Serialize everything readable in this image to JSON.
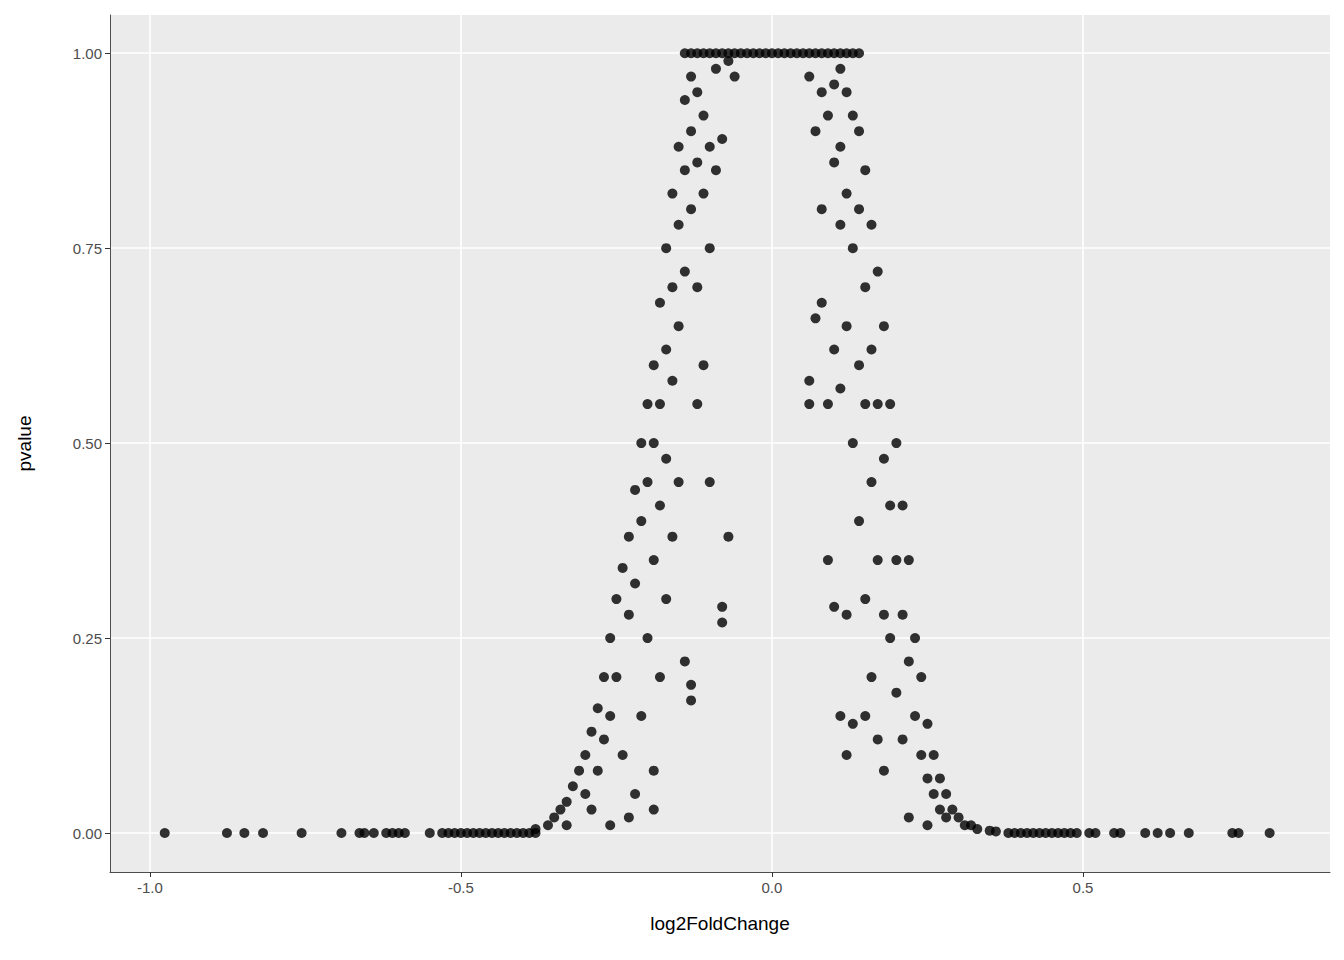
{
  "chart_data": {
    "type": "scatter",
    "x_label": "log2FoldChange",
    "y_label": "pvalue",
    "color": "#000000",
    "marker": "circle",
    "grid": true,
    "xlim": [
      -1.064,
      0.897
    ],
    "xticks": [
      {
        "value": -1,
        "label": "-1.0"
      },
      {
        "value": -0.5,
        "label": "-0.5"
      },
      {
        "value": 0,
        "label": "0.0"
      },
      {
        "value": 0.5,
        "label": "0.5"
      }
    ],
    "ylim": [
      -0.05,
      1.049
    ],
    "yticks": [
      {
        "value": 0,
        "label": "0.00"
      },
      {
        "value": 0.25,
        "label": "0.25"
      },
      {
        "value": 0.5,
        "label": "0.50"
      },
      {
        "value": 0.75,
        "label": "0.75"
      },
      {
        "value": 1,
        "label": "1.00"
      }
    ],
    "x": [
      -0.976,
      -0.876,
      -0.848,
      -0.818,
      -0.756,
      -0.692,
      -0.663,
      -0.655,
      -0.64,
      -0.62,
      -0.61,
      -0.6,
      -0.59,
      -0.55,
      -0.53,
      -0.52,
      -0.51,
      -0.5,
      -0.49,
      -0.48,
      -0.47,
      -0.46,
      -0.45,
      -0.44,
      -0.43,
      -0.42,
      -0.41,
      -0.4,
      -0.39,
      -0.38,
      0.38,
      0.39,
      0.4,
      0.41,
      0.42,
      0.43,
      0.44,
      0.45,
      0.46,
      0.47,
      0.48,
      0.49,
      0.51,
      0.52,
      0.55,
      0.56,
      0.6,
      0.62,
      0.64,
      0.67,
      0.74,
      0.75,
      0.8,
      -0.14,
      -0.13,
      -0.12,
      -0.11,
      -0.1,
      -0.09,
      -0.08,
      -0.07,
      -0.06,
      -0.05,
      -0.04,
      -0.03,
      -0.02,
      -0.01,
      0,
      0.01,
      0.02,
      0.03,
      0.04,
      0.05,
      0.06,
      0.07,
      0.08,
      0.09,
      0.1,
      0.11,
      0.12,
      0.13,
      0.14,
      -0.38,
      -0.36,
      -0.35,
      -0.34,
      -0.33,
      -0.32,
      -0.31,
      -0.3,
      -0.3,
      -0.29,
      -0.29,
      -0.28,
      -0.28,
      -0.27,
      -0.27,
      -0.26,
      -0.26,
      -0.25,
      -0.25,
      -0.24,
      -0.24,
      -0.23,
      -0.23,
      -0.22,
      -0.22,
      -0.22,
      -0.21,
      -0.21,
      -0.21,
      -0.2,
      -0.2,
      -0.2,
      -0.19,
      -0.19,
      -0.19,
      -0.19,
      -0.18,
      -0.18,
      -0.18,
      -0.18,
      -0.17,
      -0.17,
      -0.17,
      -0.17,
      -0.16,
      -0.16,
      -0.16,
      -0.16,
      -0.15,
      -0.15,
      -0.15,
      -0.15,
      -0.14,
      -0.14,
      -0.14,
      -0.14,
      -0.13,
      -0.13,
      -0.13,
      -0.13,
      -0.12,
      -0.12,
      -0.12,
      -0.12,
      -0.11,
      -0.11,
      -0.11,
      -0.1,
      -0.1,
      -0.1,
      -0.09,
      -0.09,
      -0.08,
      -0.08,
      -0.07,
      -0.07,
      -0.06,
      -0.08,
      -0.13,
      -0.19,
      -0.23,
      -0.26,
      -0.33,
      0.06,
      0.06,
      0.06,
      0.07,
      0.07,
      0.08,
      0.08,
      0.08,
      0.09,
      0.09,
      0.09,
      0.1,
      0.1,
      0.1,
      0.1,
      0.11,
      0.11,
      0.11,
      0.11,
      0.11,
      0.12,
      0.12,
      0.12,
      0.12,
      0.12,
      0.13,
      0.13,
      0.13,
      0.13,
      0.14,
      0.14,
      0.14,
      0.14,
      0.15,
      0.15,
      0.15,
      0.15,
      0.15,
      0.16,
      0.16,
      0.16,
      0.16,
      0.17,
      0.17,
      0.17,
      0.17,
      0.18,
      0.18,
      0.18,
      0.18,
      0.19,
      0.19,
      0.19,
      0.2,
      0.2,
      0.2,
      0.21,
      0.21,
      0.21,
      0.22,
      0.22,
      0.22,
      0.23,
      0.23,
      0.24,
      0.24,
      0.25,
      0.25,
      0.25,
      0.26,
      0.26,
      0.27,
      0.27,
      0.28,
      0.28,
      0.29,
      0.3,
      0.31,
      0.32,
      0.33,
      0.35,
      0.36
    ],
    "values": [
      0,
      0,
      0,
      0,
      0,
      0,
      0,
      0,
      0,
      0,
      0,
      0,
      0,
      0,
      0,
      0,
      0,
      0,
      0,
      0,
      0,
      0,
      0,
      0,
      0,
      0,
      0,
      0,
      0,
      0,
      0,
      0,
      0,
      0,
      0,
      0,
      0,
      0,
      0,
      0,
      0,
      0,
      0,
      0,
      0,
      0,
      0,
      0,
      0,
      0,
      0,
      0,
      0,
      1,
      1,
      1,
      1,
      1,
      1,
      1,
      1,
      1,
      1,
      1,
      1,
      1,
      1,
      1,
      1,
      1,
      1,
      1,
      1,
      1,
      1,
      1,
      1,
      1,
      1,
      1,
      1,
      1,
      0.005,
      0.01,
      0.02,
      0.03,
      0.04,
      0.06,
      0.08,
      0.1,
      0.05,
      0.13,
      0.03,
      0.16,
      0.08,
      0.2,
      0.12,
      0.25,
      0.15,
      0.3,
      0.2,
      0.34,
      0.1,
      0.38,
      0.28,
      0.44,
      0.32,
      0.05,
      0.5,
      0.4,
      0.15,
      0.55,
      0.45,
      0.25,
      0.6,
      0.5,
      0.35,
      0.08,
      0.68,
      0.55,
      0.42,
      0.2,
      0.75,
      0.62,
      0.48,
      0.3,
      0.82,
      0.7,
      0.58,
      0.38,
      0.88,
      0.78,
      0.65,
      0.45,
      0.94,
      0.85,
      0.72,
      0.22,
      0.97,
      0.9,
      0.8,
      0.17,
      0.95,
      0.86,
      0.7,
      0.55,
      0.92,
      0.82,
      0.6,
      0.88,
      0.75,
      0.45,
      0.98,
      0.85,
      0.89,
      0.29,
      0.38,
      0.99,
      0.97,
      0.27,
      0.19,
      0.03,
      0.02,
      0.01,
      0.01,
      0.97,
      0.58,
      0.55,
      0.9,
      0.66,
      0.95,
      0.8,
      0.68,
      0.92,
      0.35,
      0.55,
      0.96,
      0.86,
      0.62,
      0.29,
      0.98,
      0.88,
      0.78,
      0.57,
      0.15,
      0.95,
      0.82,
      0.65,
      0.28,
      0.1,
      0.92,
      0.75,
      0.5,
      0.14,
      0.9,
      0.8,
      0.6,
      0.4,
      0.85,
      0.7,
      0.55,
      0.3,
      0.15,
      0.78,
      0.62,
      0.45,
      0.2,
      0.72,
      0.55,
      0.35,
      0.12,
      0.65,
      0.48,
      0.28,
      0.08,
      0.55,
      0.42,
      0.25,
      0.5,
      0.35,
      0.18,
      0.42,
      0.28,
      0.12,
      0.35,
      0.22,
      0.02,
      0.25,
      0.15,
      0.2,
      0.1,
      0.14,
      0.07,
      0.01,
      0.1,
      0.05,
      0.07,
      0.03,
      0.05,
      0.02,
      0.03,
      0.02,
      0.01,
      0.01,
      0.005,
      0.003,
      0.002
    ]
  }
}
